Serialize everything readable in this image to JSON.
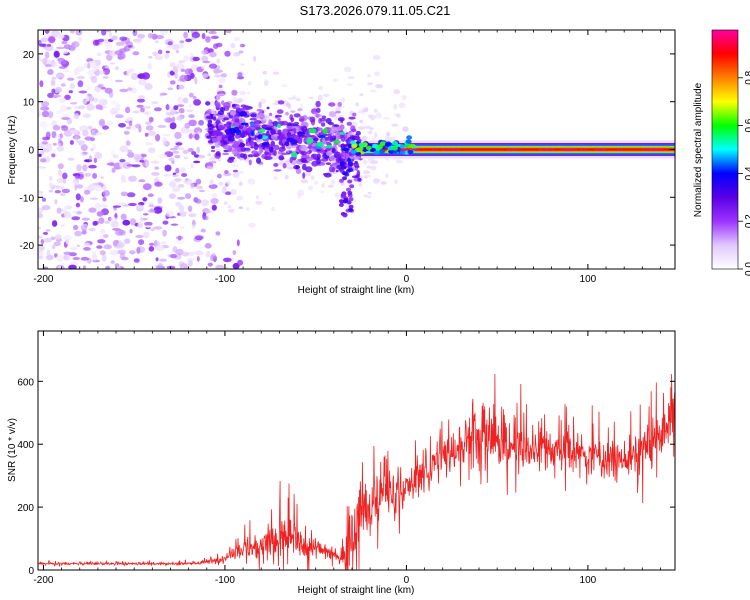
{
  "title": "S173.2026.079.11.05.C21",
  "chart_data": [
    {
      "type": "heatmap",
      "title": "S173.2026.079.11.05.C21",
      "xlabel": "Height of straight line (km)",
      "ylabel": "Frequency (Hz)",
      "xlim": [
        -203,
        148
      ],
      "ylim": [
        -25,
        25
      ],
      "x_ticks": [
        -200,
        -100,
        0,
        100
      ],
      "y_ticks": [
        -20,
        -10,
        0,
        10,
        20
      ],
      "colorbar": {
        "label": "Normalized spectral amplitude",
        "range": [
          0,
          1
        ],
        "ticks": [
          0.0,
          0.2,
          0.4,
          0.6,
          0.8
        ],
        "tick_labels": [
          "0.0",
          "0.2",
          "0.4",
          "0.6",
          "0.8"
        ],
        "colors": [
          "#ffffff",
          "#e0c8ff",
          "#9c33ff",
          "#5a00e6",
          "#0000ff",
          "#00ffff",
          "#00ff00",
          "#ffff00",
          "#ff8000",
          "#ff0000",
          "#ff00a0"
        ]
      },
      "features": [
        {
          "description": "scattered noise",
          "x_range": [
            -203,
            -105
          ],
          "f_range": [
            -25,
            25
          ],
          "amplitude": 0.08
        },
        {
          "description": "scattered echoes",
          "x_range": [
            -110,
            -25
          ],
          "f_range": [
            -12,
            10
          ],
          "amplitude": 0.2
        },
        {
          "description": "steady tone",
          "x_range": [
            -25,
            148
          ],
          "frequency": 0,
          "amplitude": 0.9
        }
      ]
    },
    {
      "type": "line",
      "xlabel": "Height of straight line (km)",
      "ylabel": "SNR (10 * v/v)",
      "xlim": [
        -203,
        148
      ],
      "ylim": [
        0,
        760
      ],
      "x_ticks": [
        -200,
        -100,
        0,
        100
      ],
      "y_ticks": [
        0,
        200,
        400,
        600
      ],
      "series": [
        {
          "name": "SNR",
          "color": "#ee2222",
          "x": [
            -203,
            -190,
            -170,
            -150,
            -130,
            -115,
            -105,
            -100,
            -95,
            -90,
            -85,
            -80,
            -75,
            -70,
            -65,
            -60,
            -55,
            -50,
            -45,
            -40,
            -36,
            -34,
            -32,
            -30,
            -28,
            -26,
            -24,
            -20,
            -15,
            -10,
            -5,
            0,
            5,
            10,
            15,
            20,
            25,
            30,
            35,
            40,
            45,
            50,
            55,
            60,
            70,
            80,
            90,
            100,
            110,
            115,
            120,
            125,
            130,
            135,
            140,
            145,
            148
          ],
          "baseline": [
            20,
            20,
            20,
            20,
            20,
            22,
            30,
            40,
            55,
            70,
            75,
            80,
            90,
            95,
            100,
            90,
            80,
            70,
            60,
            50,
            40,
            40,
            120,
            130,
            160,
            150,
            190,
            200,
            230,
            240,
            250,
            260,
            280,
            310,
            340,
            360,
            380,
            400,
            405,
            410,
            420,
            410,
            400,
            395,
            390,
            380,
            375,
            365,
            355,
            350,
            355,
            360,
            380,
            400,
            430,
            470,
            500
          ],
          "amplitude": [
            6,
            6,
            6,
            6,
            6,
            8,
            15,
            20,
            30,
            45,
            60,
            70,
            80,
            100,
            110,
            90,
            70,
            50,
            40,
            30,
            20,
            80,
            200,
            180,
            150,
            150,
            140,
            130,
            110,
            100,
            100,
            90,
            85,
            80,
            90,
            100,
            110,
            120,
            130,
            140,
            140,
            130,
            120,
            110,
            100,
            90,
            90,
            90,
            90,
            90,
            90,
            95,
            100,
            110,
            120,
            140,
            220
          ]
        }
      ]
    }
  ]
}
